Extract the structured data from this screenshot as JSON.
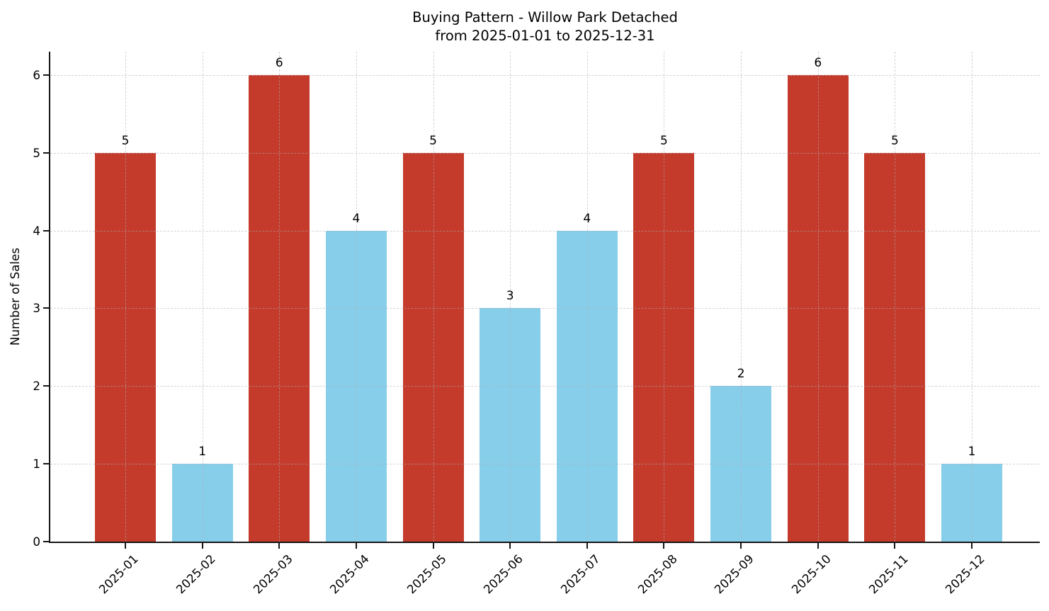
{
  "chart_data": {
    "type": "bar",
    "title": "Buying Pattern - Willow Park Detached\nfrom 2025-01-01 to 2025-12-31",
    "title_lines": [
      "Buying Pattern - Willow Park Detached",
      "from 2025-01-01 to 2025-12-31"
    ],
    "xlabel": "",
    "ylabel": "Number of Sales",
    "categories": [
      "2025-01",
      "2025-02",
      "2025-03",
      "2025-04",
      "2025-05",
      "2025-06",
      "2025-07",
      "2025-08",
      "2025-09",
      "2025-10",
      "2025-11",
      "2025-12"
    ],
    "values": [
      5,
      1,
      6,
      4,
      5,
      3,
      4,
      5,
      2,
      6,
      5,
      1
    ],
    "bar_value_labels": [
      "5",
      "1",
      "6",
      "4",
      "5",
      "3",
      "4",
      "5",
      "2",
      "6",
      "5",
      "1"
    ],
    "bar_colors": [
      "#c43a2b",
      "#87ceeb",
      "#c43a2b",
      "#87ceeb",
      "#c43a2b",
      "#87ceeb",
      "#87ceeb",
      "#c43a2b",
      "#87ceeb",
      "#c43a2b",
      "#c43a2b",
      "#87ceeb"
    ],
    "palette": {
      "high_red": "#c43a2b",
      "low_blue": "#87ceeb"
    },
    "yticks": [
      0,
      1,
      2,
      3,
      4,
      5,
      6
    ],
    "ylim": [
      0,
      6.3
    ],
    "grid": true,
    "grid_style": "dashed",
    "legend": "none",
    "x_tick_rotation": 45
  }
}
